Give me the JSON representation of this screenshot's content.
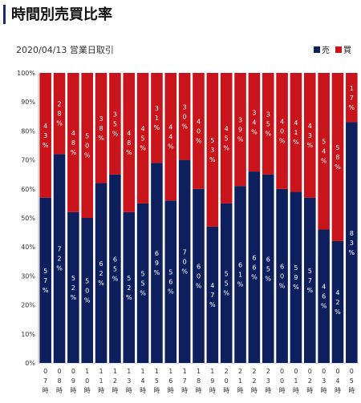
{
  "page": {
    "title": "時間別売買比率",
    "subtitle": "2020/04/13 営業日取引"
  },
  "legend": [
    {
      "name": "売",
      "color": "#0d1f5c"
    },
    {
      "name": "買",
      "color": "#c8141a"
    }
  ],
  "chart_data": {
    "type": "bar",
    "stacked": true,
    "title": "時間別売買比率",
    "subtitle": "2020/04/13 営業日取引",
    "categories": [
      "07時",
      "08時",
      "09時",
      "10時",
      "11時",
      "12時",
      "13時",
      "14時",
      "15時",
      "16時",
      "17時",
      "18時",
      "19時",
      "20時",
      "21時",
      "22時",
      "23時",
      "00時",
      "01時",
      "02時",
      "03時",
      "04時",
      "05時"
    ],
    "series": [
      {
        "name": "売",
        "color": "#0d1f5c",
        "values": [
          57,
          72,
          52,
          50,
          62,
          65,
          52,
          55,
          69,
          56,
          70,
          60,
          47,
          55,
          61,
          66,
          65,
          60,
          59,
          57,
          46,
          42,
          83
        ]
      },
      {
        "name": "買",
        "color": "#c8141a",
        "values": [
          43,
          28,
          48,
          50,
          38,
          35,
          48,
          45,
          31,
          44,
          30,
          40,
          53,
          45,
          39,
          34,
          35,
          40,
          41,
          43,
          54,
          58,
          17
        ]
      }
    ],
    "y_ticks": [
      "0%",
      "10%",
      "20%",
      "30%",
      "40%",
      "50%",
      "60%",
      "70%",
      "80%",
      "90%",
      "100%"
    ],
    "ylim": [
      0,
      100
    ],
    "legend_position": "top-right",
    "grid": false
  }
}
